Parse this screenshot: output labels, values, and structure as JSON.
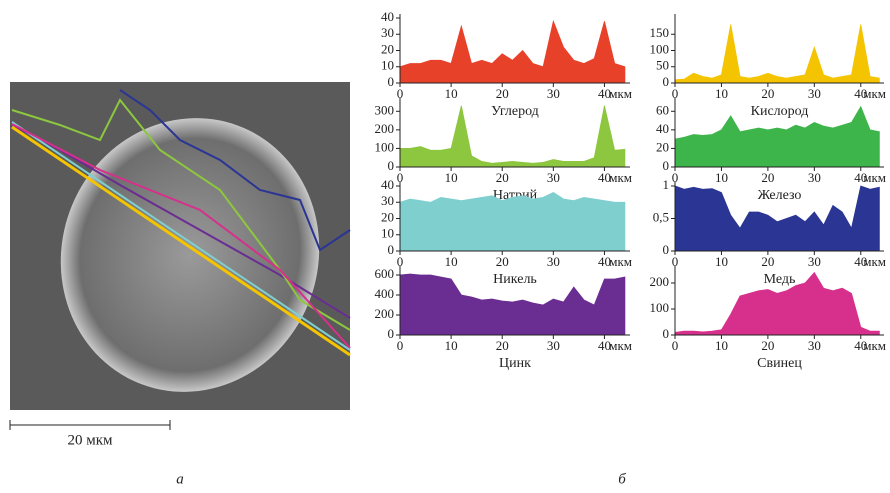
{
  "panel_a": {
    "scale_label": "20 мкм",
    "caption": "а"
  },
  "panel_b": {
    "caption": "б"
  },
  "chart_data": [
    {
      "type": "area",
      "title": "Углерод",
      "color": "#e8412a",
      "x_unit": "мкм",
      "x": [
        0,
        2,
        4,
        6,
        8,
        10,
        12,
        14,
        16,
        18,
        20,
        22,
        24,
        26,
        28,
        30,
        32,
        34,
        36,
        38,
        40,
        42,
        44
      ],
      "values": [
        10,
        12,
        12,
        14,
        14,
        12,
        35,
        12,
        14,
        12,
        18,
        14,
        20,
        12,
        10,
        38,
        22,
        14,
        12,
        15,
        38,
        12,
        10
      ],
      "xlim": [
        0,
        45
      ],
      "xticks": [
        0,
        10,
        20,
        30,
        40
      ],
      "ylim": [
        0,
        40
      ],
      "yticks": [
        0,
        10,
        20,
        30,
        40
      ]
    },
    {
      "type": "area",
      "title": "Кислород",
      "color": "#f5c400",
      "x_unit": "мкм",
      "x": [
        0,
        2,
        4,
        6,
        8,
        10,
        12,
        14,
        16,
        18,
        20,
        22,
        24,
        26,
        28,
        30,
        32,
        34,
        36,
        38,
        40,
        42,
        44
      ],
      "values": [
        10,
        12,
        30,
        20,
        15,
        25,
        180,
        20,
        15,
        20,
        30,
        20,
        15,
        20,
        25,
        110,
        25,
        15,
        20,
        25,
        180,
        20,
        15
      ],
      "xlim": [
        0,
        45
      ],
      "xticks": [
        0,
        10,
        20,
        30,
        40
      ],
      "ylim": [
        0,
        200
      ],
      "yticks": [
        0,
        50,
        100,
        150
      ]
    },
    {
      "type": "area",
      "title": "Натрий",
      "color": "#8dc63f",
      "x_unit": "мкм",
      "x": [
        0,
        2,
        4,
        6,
        8,
        10,
        12,
        14,
        16,
        18,
        20,
        22,
        24,
        26,
        28,
        30,
        32,
        34,
        36,
        38,
        40,
        42,
        44
      ],
      "values": [
        100,
        100,
        110,
        90,
        90,
        100,
        330,
        60,
        30,
        20,
        25,
        30,
        25,
        20,
        25,
        40,
        30,
        30,
        30,
        50,
        330,
        90,
        95
      ],
      "xlim": [
        0,
        45
      ],
      "xticks": [
        0,
        10,
        20,
        30,
        40
      ],
      "ylim": [
        0,
        350
      ],
      "yticks": [
        0,
        100,
        200,
        300
      ]
    },
    {
      "type": "area",
      "title": "Железо",
      "color": "#3db54a",
      "x_unit": "мкм",
      "x": [
        0,
        2,
        4,
        6,
        8,
        10,
        12,
        14,
        16,
        18,
        20,
        22,
        24,
        26,
        28,
        30,
        32,
        34,
        36,
        38,
        40,
        42,
        44
      ],
      "values": [
        30,
        32,
        35,
        34,
        35,
        40,
        55,
        38,
        40,
        42,
        40,
        42,
        40,
        45,
        42,
        48,
        44,
        42,
        45,
        48,
        65,
        40,
        38
      ],
      "xlim": [
        0,
        45
      ],
      "xticks": [
        0,
        10,
        20,
        30,
        40
      ],
      "ylim": [
        0,
        70
      ],
      "yticks": [
        0,
        20,
        40,
        60
      ]
    },
    {
      "type": "area",
      "title": "Никель",
      "color": "#7fcfcf",
      "x_unit": "мкм",
      "x": [
        0,
        2,
        4,
        6,
        8,
        10,
        12,
        14,
        16,
        18,
        20,
        22,
        24,
        26,
        28,
        30,
        32,
        34,
        36,
        38,
        40,
        42,
        44
      ],
      "values": [
        30,
        32,
        31,
        30,
        33,
        32,
        31,
        32,
        33,
        34,
        31,
        33,
        34,
        32,
        33,
        36,
        32,
        31,
        33,
        32,
        31,
        30,
        30
      ],
      "xlim": [
        0,
        45
      ],
      "xticks": [
        0,
        10,
        20,
        30,
        40
      ],
      "ylim": [
        0,
        40
      ],
      "yticks": [
        0,
        10,
        20,
        30,
        40
      ]
    },
    {
      "type": "area",
      "title": "Медь",
      "color": "#2a3594",
      "x_unit": "мкм",
      "x": [
        0,
        2,
        4,
        6,
        8,
        10,
        12,
        14,
        16,
        18,
        20,
        22,
        24,
        26,
        28,
        30,
        32,
        34,
        36,
        38,
        40,
        42,
        44
      ],
      "values": [
        1,
        0.95,
        0.98,
        0.95,
        0.96,
        0.9,
        0.55,
        0.35,
        0.6,
        0.6,
        0.55,
        0.45,
        0.5,
        0.55,
        0.45,
        0.6,
        0.4,
        0.7,
        0.6,
        0.35,
        1,
        0.95,
        0.98
      ],
      "xlim": [
        0,
        45
      ],
      "xticks": [
        0,
        10,
        20,
        30,
        40
      ],
      "ylim": [
        0,
        1
      ],
      "yticks": [
        0,
        {
          "value": 0.5,
          "label": "0,5"
        },
        1
      ]
    },
    {
      "type": "area",
      "title": "Цинк",
      "color": "#6a2d91",
      "x_unit": "мкм",
      "x": [
        0,
        2,
        4,
        6,
        8,
        10,
        12,
        14,
        16,
        18,
        20,
        22,
        24,
        26,
        28,
        30,
        32,
        34,
        36,
        38,
        40,
        42,
        44
      ],
      "values": [
        600,
        610,
        600,
        600,
        580,
        560,
        400,
        380,
        350,
        360,
        340,
        330,
        350,
        320,
        300,
        360,
        330,
        480,
        350,
        300,
        560,
        560,
        580
      ],
      "xlim": [
        0,
        45
      ],
      "xticks": [
        0,
        10,
        20,
        30,
        40
      ],
      "ylim": [
        0,
        650
      ],
      "yticks": [
        0,
        200,
        400,
        600
      ]
    },
    {
      "type": "area",
      "title": "Свинец",
      "color": "#d6308c",
      "x_unit": "мкм",
      "x": [
        0,
        2,
        4,
        6,
        8,
        10,
        12,
        14,
        16,
        18,
        20,
        22,
        24,
        26,
        28,
        30,
        32,
        34,
        36,
        38,
        40,
        42,
        44
      ],
      "values": [
        10,
        15,
        15,
        12,
        15,
        20,
        80,
        150,
        160,
        170,
        175,
        160,
        170,
        190,
        200,
        240,
        180,
        170,
        180,
        160,
        30,
        15,
        15
      ],
      "xlim": [
        0,
        45
      ],
      "xticks": [
        0,
        10,
        20,
        30,
        40
      ],
      "ylim": [
        0,
        250
      ],
      "yticks": [
        0,
        100,
        200
      ]
    }
  ]
}
